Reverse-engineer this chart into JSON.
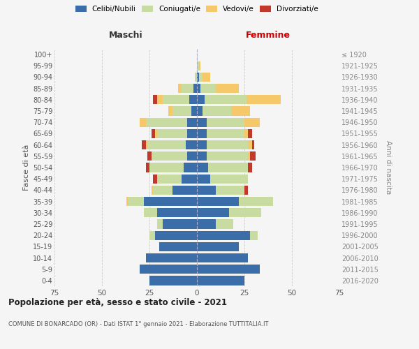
{
  "age_groups": [
    "0-4",
    "5-9",
    "10-14",
    "15-19",
    "20-24",
    "25-29",
    "30-34",
    "35-39",
    "40-44",
    "45-49",
    "50-54",
    "55-59",
    "60-64",
    "65-69",
    "70-74",
    "75-79",
    "80-84",
    "85-89",
    "90-94",
    "95-99",
    "100+"
  ],
  "birth_years": [
    "2016-2020",
    "2011-2015",
    "2006-2010",
    "2001-2005",
    "1996-2000",
    "1991-1995",
    "1986-1990",
    "1981-1985",
    "1976-1980",
    "1971-1975",
    "1966-1970",
    "1961-1965",
    "1956-1960",
    "1951-1955",
    "1946-1950",
    "1941-1945",
    "1936-1940",
    "1931-1935",
    "1926-1930",
    "1921-1925",
    "≤ 1920"
  ],
  "maschi": {
    "celibi": [
      25,
      30,
      27,
      20,
      22,
      18,
      21,
      28,
      13,
      8,
      7,
      5,
      6,
      5,
      5,
      3,
      4,
      2,
      0,
      0,
      0
    ],
    "coniugati": [
      0,
      0,
      0,
      0,
      3,
      3,
      7,
      8,
      10,
      13,
      18,
      19,
      20,
      16,
      22,
      10,
      14,
      6,
      1,
      0,
      0
    ],
    "vedovi": [
      0,
      0,
      0,
      0,
      0,
      0,
      0,
      1,
      1,
      0,
      0,
      0,
      1,
      1,
      3,
      2,
      3,
      2,
      0,
      0,
      0
    ],
    "divorziati": [
      0,
      0,
      0,
      0,
      0,
      0,
      0,
      0,
      0,
      2,
      2,
      2,
      2,
      2,
      0,
      0,
      2,
      0,
      0,
      0,
      0
    ]
  },
  "femmine": {
    "nubili": [
      25,
      33,
      27,
      22,
      28,
      10,
      17,
      22,
      10,
      7,
      6,
      5,
      5,
      5,
      5,
      3,
      4,
      2,
      1,
      0,
      0
    ],
    "coniugate": [
      0,
      0,
      0,
      0,
      4,
      9,
      17,
      18,
      15,
      20,
      21,
      22,
      22,
      20,
      20,
      15,
      22,
      8,
      2,
      1,
      0
    ],
    "vedove": [
      0,
      0,
      0,
      0,
      0,
      0,
      0,
      0,
      0,
      0,
      0,
      1,
      2,
      2,
      8,
      10,
      18,
      12,
      4,
      1,
      0
    ],
    "divorziate": [
      0,
      0,
      0,
      0,
      0,
      0,
      0,
      0,
      2,
      0,
      2,
      3,
      1,
      2,
      0,
      0,
      0,
      0,
      0,
      0,
      0
    ]
  },
  "colors": {
    "celibi": "#3b6ea8",
    "coniugati": "#c8dba0",
    "vedovi": "#f5c96a",
    "divorziati": "#c0392b"
  },
  "title": "Popolazione per età, sesso e stato civile - 2021",
  "subtitle": "COMUNE DI BONARCADO (OR) - Dati ISTAT 1° gennaio 2021 - Elaborazione TUTTITALIA.IT",
  "xlabel_left": "Maschi",
  "xlabel_right": "Femmine",
  "ylabel_left": "Fasce di età",
  "ylabel_right": "Anni di nascita",
  "xlim": 75,
  "background_color": "#f5f5f5"
}
